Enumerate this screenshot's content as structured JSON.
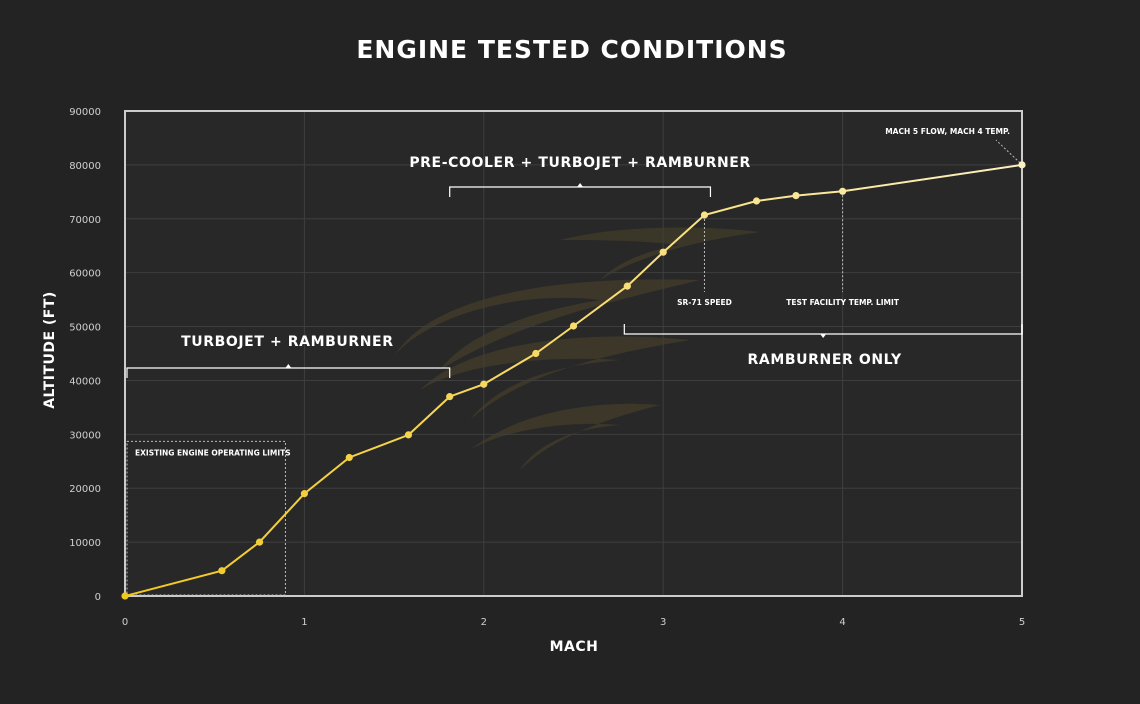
{
  "chart_data": {
    "type": "line",
    "title": "ENGINE TESTED CONDITIONS",
    "xlabel": "MACH",
    "ylabel": "ALTITUDE (FT)",
    "xlim": [
      0,
      5
    ],
    "ylim": [
      0,
      90000
    ],
    "x_ticks": [
      "0",
      "1",
      "2",
      "3",
      "4",
      "5"
    ],
    "y_ticks": [
      "0",
      "10000",
      "20000",
      "30000",
      "40000",
      "50000",
      "60000",
      "70000",
      "80000",
      "90000"
    ],
    "grid": true,
    "series": [
      {
        "points": [
          {
            "x": 0.0,
            "y": 0
          },
          {
            "x": 0.54,
            "y": 4700
          },
          {
            "x": 0.75,
            "y": 10000
          },
          {
            "x": 1.0,
            "y": 19000
          },
          {
            "x": 1.25,
            "y": 25700
          },
          {
            "x": 1.58,
            "y": 29900
          },
          {
            "x": 1.81,
            "y": 37000
          },
          {
            "x": 2.0,
            "y": 39300
          },
          {
            "x": 2.29,
            "y": 45000
          },
          {
            "x": 2.5,
            "y": 50100
          },
          {
            "x": 2.8,
            "y": 57500
          },
          {
            "x": 3.0,
            "y": 63800
          },
          {
            "x": 3.23,
            "y": 70700
          },
          {
            "x": 3.52,
            "y": 73300
          },
          {
            "x": 3.74,
            "y": 74300
          },
          {
            "x": 4.0,
            "y": 75100
          },
          {
            "x": 5.0,
            "y": 80000
          }
        ]
      }
    ],
    "colors": {
      "background": "#232323",
      "plot_background": "#282828",
      "line_start": "#f2c81c",
      "line_end": "#fdf0c0",
      "grid": "#3e3e3e",
      "frame": "#cccccc"
    },
    "regions": [
      {
        "label": "TURBOJET + RAMBURNER",
        "x_range": [
          0,
          1.81
        ]
      },
      {
        "label": "PRE-COOLER + TURBOJET + RAMBURNER",
        "x_range": [
          1.81,
          3.23
        ]
      },
      {
        "label": "RAMBURNER ONLY",
        "x_range": [
          2.8,
          5.0
        ]
      }
    ],
    "annotations": [
      {
        "label": "EXISTING ENGINE OPERATING LIMITS",
        "x_range": [
          0,
          0.9
        ],
        "y_range": [
          0,
          28500
        ]
      },
      {
        "label": "SR-71 SPEED",
        "x": 3.23
      },
      {
        "label": "TEST FACILITY TEMP. LIMIT",
        "x": 4.0
      },
      {
        "label": "MACH 5 FLOW, MACH 4 TEMP.",
        "x": 5.0
      }
    ]
  }
}
